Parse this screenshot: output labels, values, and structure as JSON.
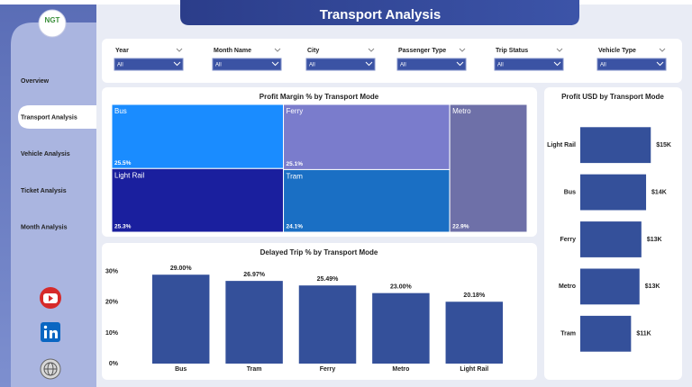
{
  "header": {
    "title": "Transport Analysis"
  },
  "logo": {
    "text": "NGT"
  },
  "nav": {
    "items": [
      "Overview",
      "Transport Analysis",
      "Vehicle Analysis",
      "Ticket Analysis",
      "Month Analysis"
    ]
  },
  "filters": [
    {
      "label": "Year",
      "value": "All"
    },
    {
      "label": "Month Name",
      "value": "All"
    },
    {
      "label": "City",
      "value": "All"
    },
    {
      "label": "Passenger Type",
      "value": "All"
    },
    {
      "label": "Trip Status",
      "value": "All"
    },
    {
      "label": "Vehicle Type",
      "value": "All"
    }
  ],
  "chart_data": [
    {
      "type": "treemap",
      "title": "Profit Margin % by Transport Mode",
      "categories": [
        "Bus",
        "Ferry",
        "Metro",
        "Light Rail",
        "Tram"
      ],
      "values": [
        25.5,
        25.1,
        22.9,
        25.3,
        24.1
      ],
      "value_labels": [
        "25.5%",
        "25.1%",
        "22.9%",
        "25.3%",
        "24.1%"
      ],
      "colors": [
        "#1a8cff",
        "#7a7ccc",
        "#6e70a8",
        "#1a1f9e",
        "#1a6fc4"
      ]
    },
    {
      "type": "bar",
      "title": "Delayed Trip % by Transport Mode",
      "categories": [
        "Bus",
        "Tram",
        "Ferry",
        "Metro",
        "Light Rail"
      ],
      "values": [
        29.0,
        26.97,
        25.49,
        23.0,
        20.18
      ],
      "value_labels": [
        "29.00%",
        "26.97%",
        "25.49%",
        "23.00%",
        "20.18%"
      ],
      "color": "#34509a",
      "ylim": [
        0,
        32
      ],
      "yticks": [
        {
          "value": 0,
          "label": "0%"
        },
        {
          "value": 10,
          "label": "10%"
        },
        {
          "value": 20,
          "label": "20%"
        },
        {
          "value": 30,
          "label": "30%"
        }
      ]
    },
    {
      "type": "barh",
      "title": "Profit USD by Transport Mode",
      "categories": [
        "Light Rail",
        "Bus",
        "Ferry",
        "Metro",
        "Tram"
      ],
      "values": [
        15000,
        14000,
        13000,
        12600,
        10800
      ],
      "value_labels": [
        "$15K",
        "$14K",
        "$13K",
        "$13K",
        "$11K"
      ],
      "color": "#34509a"
    }
  ]
}
